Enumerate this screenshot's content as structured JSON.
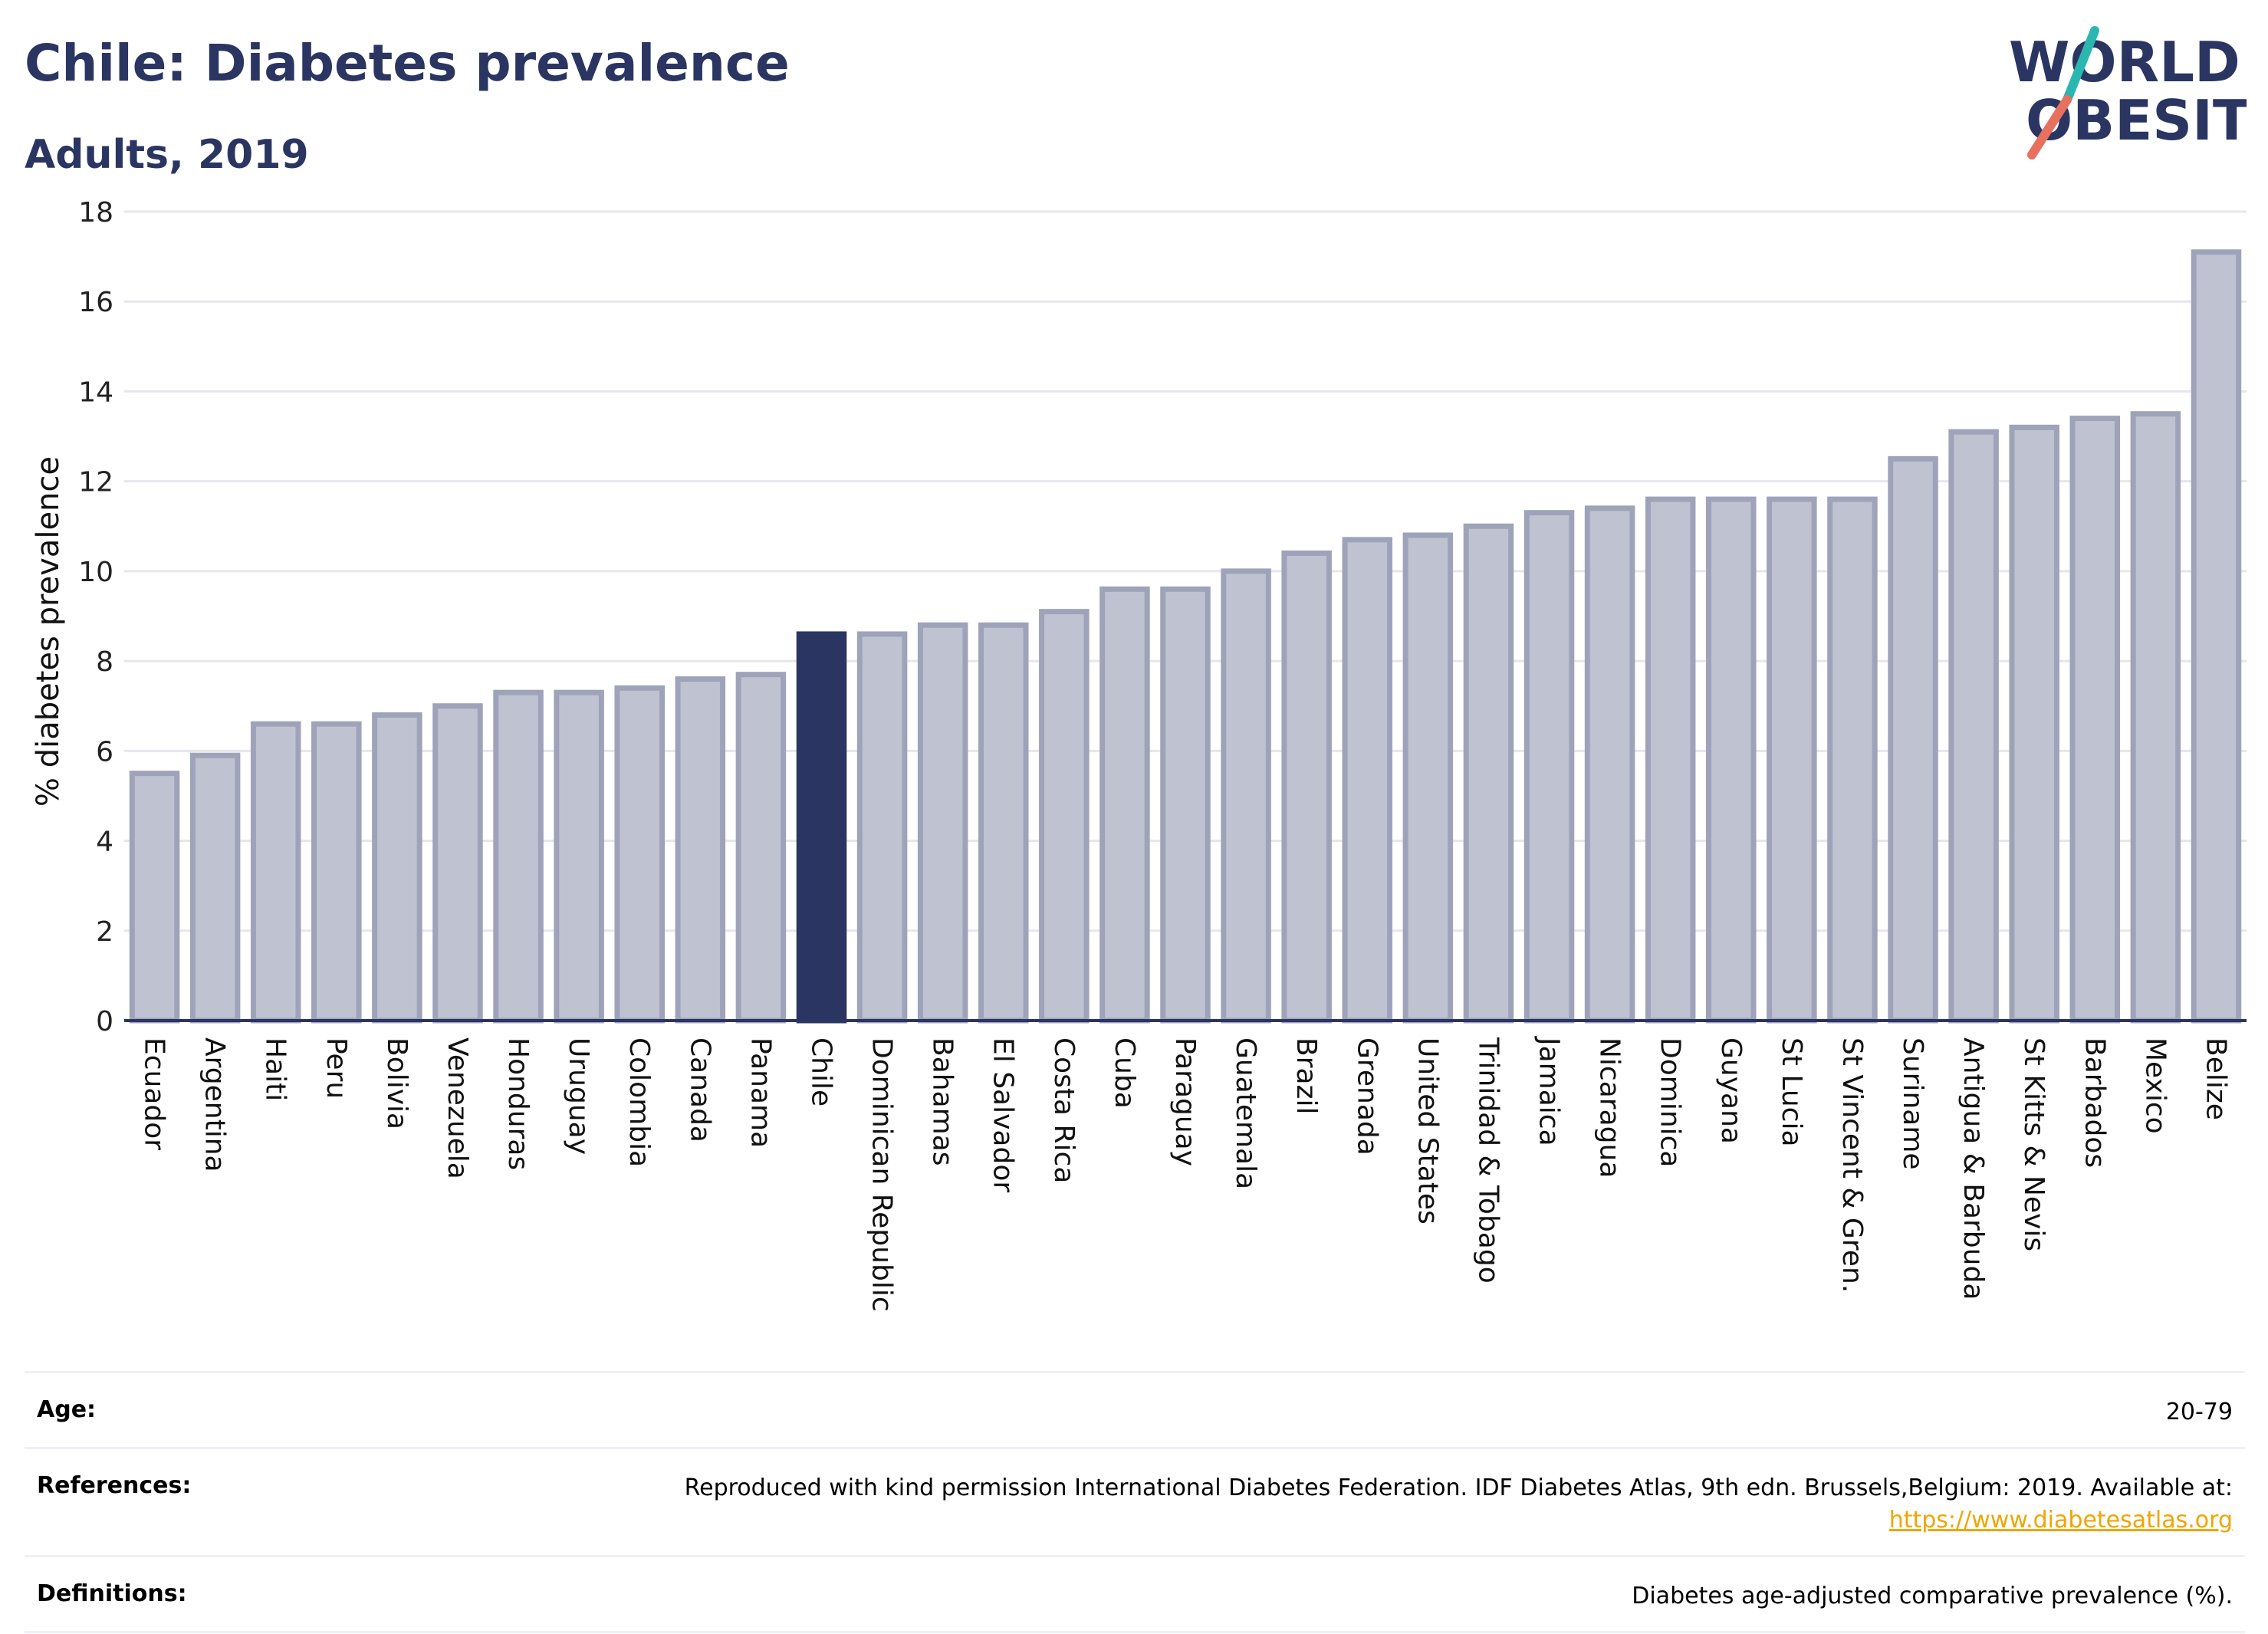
{
  "header": {
    "title": "Chile: Diabetes prevalence",
    "subtitle": "Adults, 2019",
    "logo_line1": "WORLD",
    "logo_line2": "OBESITY"
  },
  "colors": {
    "highlight": "#2a3561",
    "bar_fill": "#bfc2d0",
    "bar_stroke": "#9ea3ba",
    "grid": "#e6e6ec",
    "logo_teal": "#2ab7b0",
    "logo_red": "#e8705e",
    "link": "#f0a500"
  },
  "chart_data": {
    "type": "bar",
    "ylabel": "% diabetes prevalence",
    "ylim": [
      0,
      18
    ],
    "yticks": [
      0,
      2,
      4,
      6,
      8,
      10,
      12,
      14,
      16,
      18
    ],
    "grid": true,
    "highlight": "Chile",
    "categories": [
      "Ecuador",
      "Argentina",
      "Haiti",
      "Peru",
      "Bolivia",
      "Venezuela",
      "Honduras",
      "Uruguay",
      "Colombia",
      "Canada",
      "Panama",
      "Chile",
      "Dominican Republic",
      "Bahamas",
      "El Salvador",
      "Costa Rica",
      "Cuba",
      "Paraguay",
      "Guatemala",
      "Brazil",
      "Grenada",
      "United States",
      "Trinidad & Tobago",
      "Jamaica",
      "Nicaragua",
      "Dominica",
      "Guyana",
      "St Lucia",
      "St Vincent & Gren.",
      "Suriname",
      "Antigua & Barbuda",
      "St Kitts & Nevis",
      "Barbados",
      "Mexico",
      "Belize"
    ],
    "values": [
      5.5,
      5.9,
      6.6,
      6.6,
      6.8,
      7.0,
      7.3,
      7.3,
      7.4,
      7.6,
      7.7,
      8.6,
      8.6,
      8.8,
      8.8,
      9.1,
      9.6,
      9.6,
      10.0,
      10.4,
      10.7,
      10.8,
      11.0,
      11.3,
      11.4,
      11.6,
      11.6,
      11.6,
      11.6,
      12.5,
      13.1,
      13.2,
      13.4,
      13.5,
      17.1
    ]
  },
  "info": {
    "age_label": "Age:",
    "age_value": "20-79",
    "references_label": "References:",
    "references_text": "Reproduced with kind permission International Diabetes Federation. IDF Diabetes Atlas, 9th edn. Brussels,Belgium: 2019. Available at:",
    "references_link": "https://www.diabetesatlas.org",
    "definitions_label": "Definitions:",
    "definitions_value": "Diabetes age-adjusted comparative prevalence (%)."
  }
}
